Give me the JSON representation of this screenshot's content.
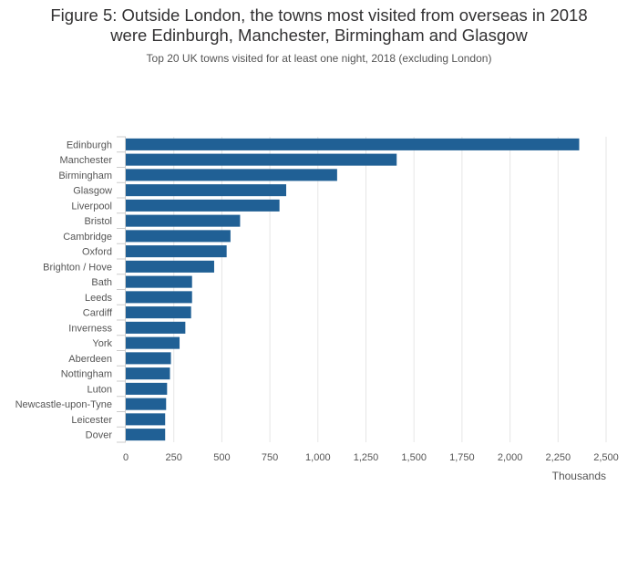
{
  "chart_data": {
    "type": "bar",
    "orientation": "horizontal",
    "title_lines": [
      "Figure 5: Outside London, the towns most visited from overseas in 2018",
      "were Edinburgh, Manchester, Birmingham and Glasgow"
    ],
    "subtitle": "Top 20 UK towns visited for at least one night, 2018 (excluding London)",
    "xlabel": "Thousands",
    "ylabel": "",
    "xlim": [
      0,
      2500
    ],
    "x_ticks": [
      0,
      250,
      500,
      750,
      1000,
      1250,
      1500,
      1750,
      2000,
      2250,
      2500
    ],
    "x_tick_labels": [
      "0",
      "250",
      "500",
      "750",
      "1,000",
      "1,250",
      "1,500",
      "1,750",
      "2,000",
      "2,250",
      "2,500"
    ],
    "grid": "vertical",
    "bar_color": "#206095",
    "categories": [
      "Edinburgh",
      "Manchester",
      "Birmingham",
      "Glasgow",
      "Liverpool",
      "Bristol",
      "Cambridge",
      "Oxford",
      "Brighton / Hove",
      "Bath",
      "Leeds",
      "Cardiff",
      "Inverness",
      "York",
      "Aberdeen",
      "Nottingham",
      "Luton",
      "Newcastle-upon-Tyne",
      "Leicester",
      "Dover"
    ],
    "values": [
      2360,
      1410,
      1100,
      835,
      800,
      595,
      545,
      525,
      460,
      345,
      345,
      340,
      310,
      280,
      235,
      230,
      215,
      210,
      205,
      205
    ]
  }
}
